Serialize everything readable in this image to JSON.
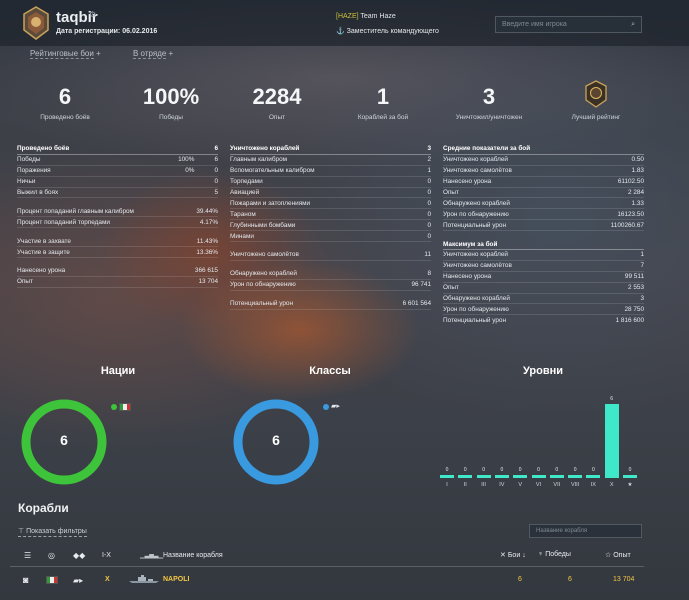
{
  "header": {
    "nickname": "taqbir",
    "reg_label": "Дата регистрации:",
    "reg_date": "06.02.2016",
    "clan_tag": "[HAZE]",
    "clan_name": "Team Haze",
    "role": "Заместитель командующего",
    "search_placeholder": "Введите имя игрока"
  },
  "subnav": {
    "rating": "Рейтинговые бои",
    "division": "В отряде"
  },
  "stats": [
    {
      "value": "6",
      "label": "Проведено боёв"
    },
    {
      "value": "100%",
      "label": "Победы"
    },
    {
      "value": "2284",
      "label": "Опыт"
    },
    {
      "value": "1",
      "label": "Кораблей за бой"
    },
    {
      "value": "3",
      "label": "Уничтожил/уничтожен"
    }
  ],
  "best_rank_label": "Лучший рейтинг",
  "battles": {
    "header": [
      "Проведено боёв",
      "6"
    ],
    "rows": [
      [
        "Победы",
        "100%",
        "6"
      ],
      [
        "Поражения",
        "0%",
        "0"
      ],
      [
        "Ничьи",
        "",
        "0"
      ],
      [
        "Выжил в боях",
        "",
        "5"
      ]
    ],
    "rows2": [
      [
        "Процент попаданий главным калибром",
        "39.44%"
      ],
      [
        "Процент попаданий торпедами",
        "4.17%"
      ]
    ],
    "rows3": [
      [
        "Участие в захвате",
        "11.43%"
      ],
      [
        "Участие в защите",
        "13.36%"
      ]
    ],
    "rows4": [
      [
        "Нанесено урона",
        "366 615"
      ],
      [
        "Опыт",
        "13 704"
      ]
    ]
  },
  "destroyed": {
    "header": [
      "Уничтожено кораблей",
      "3"
    ],
    "rows": [
      [
        "Главным калибром",
        "2"
      ],
      [
        "Вспомогательным калибром",
        "1"
      ],
      [
        "Торпедами",
        "0"
      ],
      [
        "Авиацией",
        "0"
      ],
      [
        "Пожарами и затоплениями",
        "0"
      ],
      [
        "Тараном",
        "0"
      ],
      [
        "Глубинными бомбами",
        "0"
      ],
      [
        "Минами",
        "0"
      ]
    ],
    "planes": [
      "Уничтожено самолётов",
      "11"
    ],
    "rows2": [
      [
        "Обнаружено кораблей",
        "8"
      ],
      [
        "Урон по обнаружению",
        "96 741"
      ]
    ],
    "potential": [
      "Потенциальный урон",
      "6 601 564"
    ]
  },
  "average": {
    "header": "Средние показатели за бой",
    "rows": [
      [
        "Уничтожено кораблей",
        "0.50"
      ],
      [
        "Уничтожено самолётов",
        "1.83"
      ],
      [
        "Нанесено урона",
        "61102.50"
      ],
      [
        "Опыт",
        "2 284"
      ],
      [
        "Обнаружено кораблей",
        "1.33"
      ],
      [
        "Урон по обнаружению",
        "16123.50"
      ],
      [
        "Потенциальный урон",
        "1100260.67"
      ]
    ]
  },
  "maximum": {
    "header": "Максимум за бой",
    "rows": [
      [
        "Уничтожено кораблей",
        "1"
      ],
      [
        "Уничтожено самолётов",
        "7"
      ],
      [
        "Нанесено урона",
        "99 511"
      ],
      [
        "Опыт",
        "2 553"
      ],
      [
        "Обнаружено кораблей",
        "3"
      ],
      [
        "Урон по обнаружению",
        "28 750"
      ],
      [
        "Потенциальный урон",
        "1 816 600"
      ]
    ]
  },
  "nations": {
    "title": "Нации",
    "count": "6",
    "color": "#3ec43a"
  },
  "classes": {
    "title": "Классы",
    "count": "6",
    "color": "#3a9ae0"
  },
  "levels": {
    "title": "Уровни"
  },
  "chart_data": {
    "type": "bar",
    "title": "Уровни",
    "categories": [
      "I",
      "II",
      "III",
      "IV",
      "V",
      "VI",
      "VII",
      "VIII",
      "IX",
      "X",
      "★"
    ],
    "values": [
      0,
      0,
      0,
      0,
      0,
      0,
      0,
      0,
      0,
      6,
      0
    ],
    "color": "#3ee8c9"
  },
  "ships": {
    "title": "Корабли",
    "filters": "Показать фильтры",
    "search_placeholder": "Название корабля",
    "columns": {
      "tier": "I-X",
      "name": "Название корабля",
      "battles": "Бои",
      "wins": "Победы",
      "exp": "Опыт"
    },
    "rows": [
      {
        "tier": "X",
        "name": "NAPOLI",
        "battles": "6",
        "wins": "6",
        "exp": "13 704"
      }
    ]
  }
}
